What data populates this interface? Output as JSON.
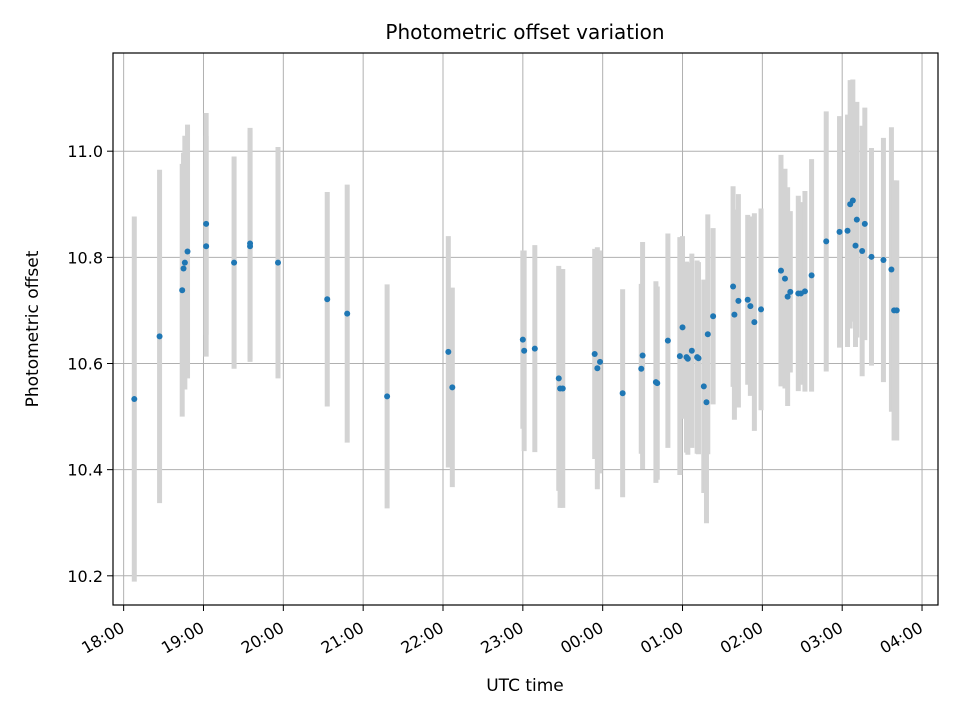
{
  "chart_data": {
    "type": "scatter",
    "title": "Photometric offset variation",
    "xlabel": "UTC time",
    "ylabel": "Photometric offset",
    "x_start": "18:00",
    "xlim": [
      "17:52",
      "04:12"
    ],
    "ylim": [
      10.145,
      11.185
    ],
    "grid": true,
    "x_ticks": [
      "18:00",
      "19:00",
      "20:00",
      "21:00",
      "22:00",
      "23:00",
      "00:00",
      "01:00",
      "02:00",
      "03:00",
      "04:00"
    ],
    "y_ticks": [
      10.2,
      10.4,
      10.6,
      10.8,
      11.0
    ],
    "y_tick_labels": [
      "10.2",
      "10.4",
      "10.6",
      "10.8",
      "11.0"
    ],
    "colors": {
      "point": "#1f77b4",
      "errorbar": "#d3d3d3",
      "grid": "#b0b0b0"
    },
    "series": [
      {
        "x": [
          "18:08",
          "18:27",
          "18:44",
          "18:45",
          "18:46",
          "18:48",
          "19:02",
          "19:02",
          "19:23",
          "19:35",
          "19:35",
          "19:56",
          "20:33",
          "20:48",
          "21:18",
          "22:04",
          "22:07",
          "23:00",
          "23:01",
          "23:09",
          "23:27",
          "23:28",
          "23:30",
          "23:54",
          "23:56",
          "23:58",
          "00:15",
          "00:29",
          "00:30",
          "00:40",
          "00:41",
          "00:49",
          "00:58",
          "01:00",
          "01:03",
          "01:04",
          "01:07",
          "01:11",
          "01:12",
          "01:16",
          "01:18",
          "01:19",
          "01:23",
          "01:38",
          "01:39",
          "01:42",
          "01:49",
          "01:51",
          "01:54",
          "01:59",
          "02:14",
          "02:17",
          "02:19",
          "02:21",
          "02:27",
          "02:29",
          "02:32",
          "02:37",
          "02:48",
          "02:58",
          "03:04",
          "03:06",
          "03:08",
          "03:10",
          "03:11",
          "03:15",
          "03:17",
          "03:22",
          "03:31",
          "03:37",
          "03:39",
          "03:41"
        ],
        "y": [
          10.533,
          10.651,
          10.738,
          10.779,
          10.79,
          10.811,
          10.821,
          10.863,
          10.79,
          10.821,
          10.826,
          10.79,
          10.721,
          10.694,
          10.538,
          10.622,
          10.555,
          10.645,
          10.624,
          10.628,
          10.572,
          10.553,
          10.553,
          10.618,
          10.591,
          10.603,
          10.544,
          10.59,
          10.615,
          10.565,
          10.563,
          10.643,
          10.614,
          10.668,
          10.612,
          10.609,
          10.624,
          10.612,
          10.61,
          10.557,
          10.527,
          10.655,
          10.689,
          10.745,
          10.692,
          10.718,
          10.72,
          10.708,
          10.678,
          10.702,
          10.775,
          10.76,
          10.726,
          10.735,
          10.732,
          10.732,
          10.736,
          10.766,
          10.83,
          10.848,
          10.85,
          10.9,
          10.907,
          10.822,
          10.871,
          10.812,
          10.863,
          10.801,
          10.795,
          10.777,
          10.7,
          10.7
        ],
        "err": [
          0.344,
          0.314,
          0.238,
          0.218,
          0.239,
          0.239,
          0.208,
          0.209,
          0.2,
          0.218,
          0.218,
          0.218,
          0.202,
          0.243,
          0.211,
          0.218,
          0.188,
          0.168,
          0.189,
          0.195,
          0.212,
          0.225,
          0.225,
          0.198,
          0.228,
          0.21,
          0.196,
          0.16,
          0.214,
          0.19,
          0.182,
          0.202,
          0.224,
          0.172,
          0.18,
          0.181,
          0.183,
          0.182,
          0.181,
          0.201,
          0.228,
          0.226,
          0.166,
          0.189,
          0.198,
          0.201,
          0.16,
          0.169,
          0.205,
          0.19,
          0.218,
          0.207,
          0.206,
          0.152,
          0.184,
          0.172,
          0.189,
          0.219,
          0.245,
          0.218,
          0.219,
          0.234,
          0.228,
          0.191,
          0.222,
          0.236,
          0.219,
          0.205,
          0.23,
          0.268,
          0.245,
          0.245
        ]
      }
    ]
  }
}
